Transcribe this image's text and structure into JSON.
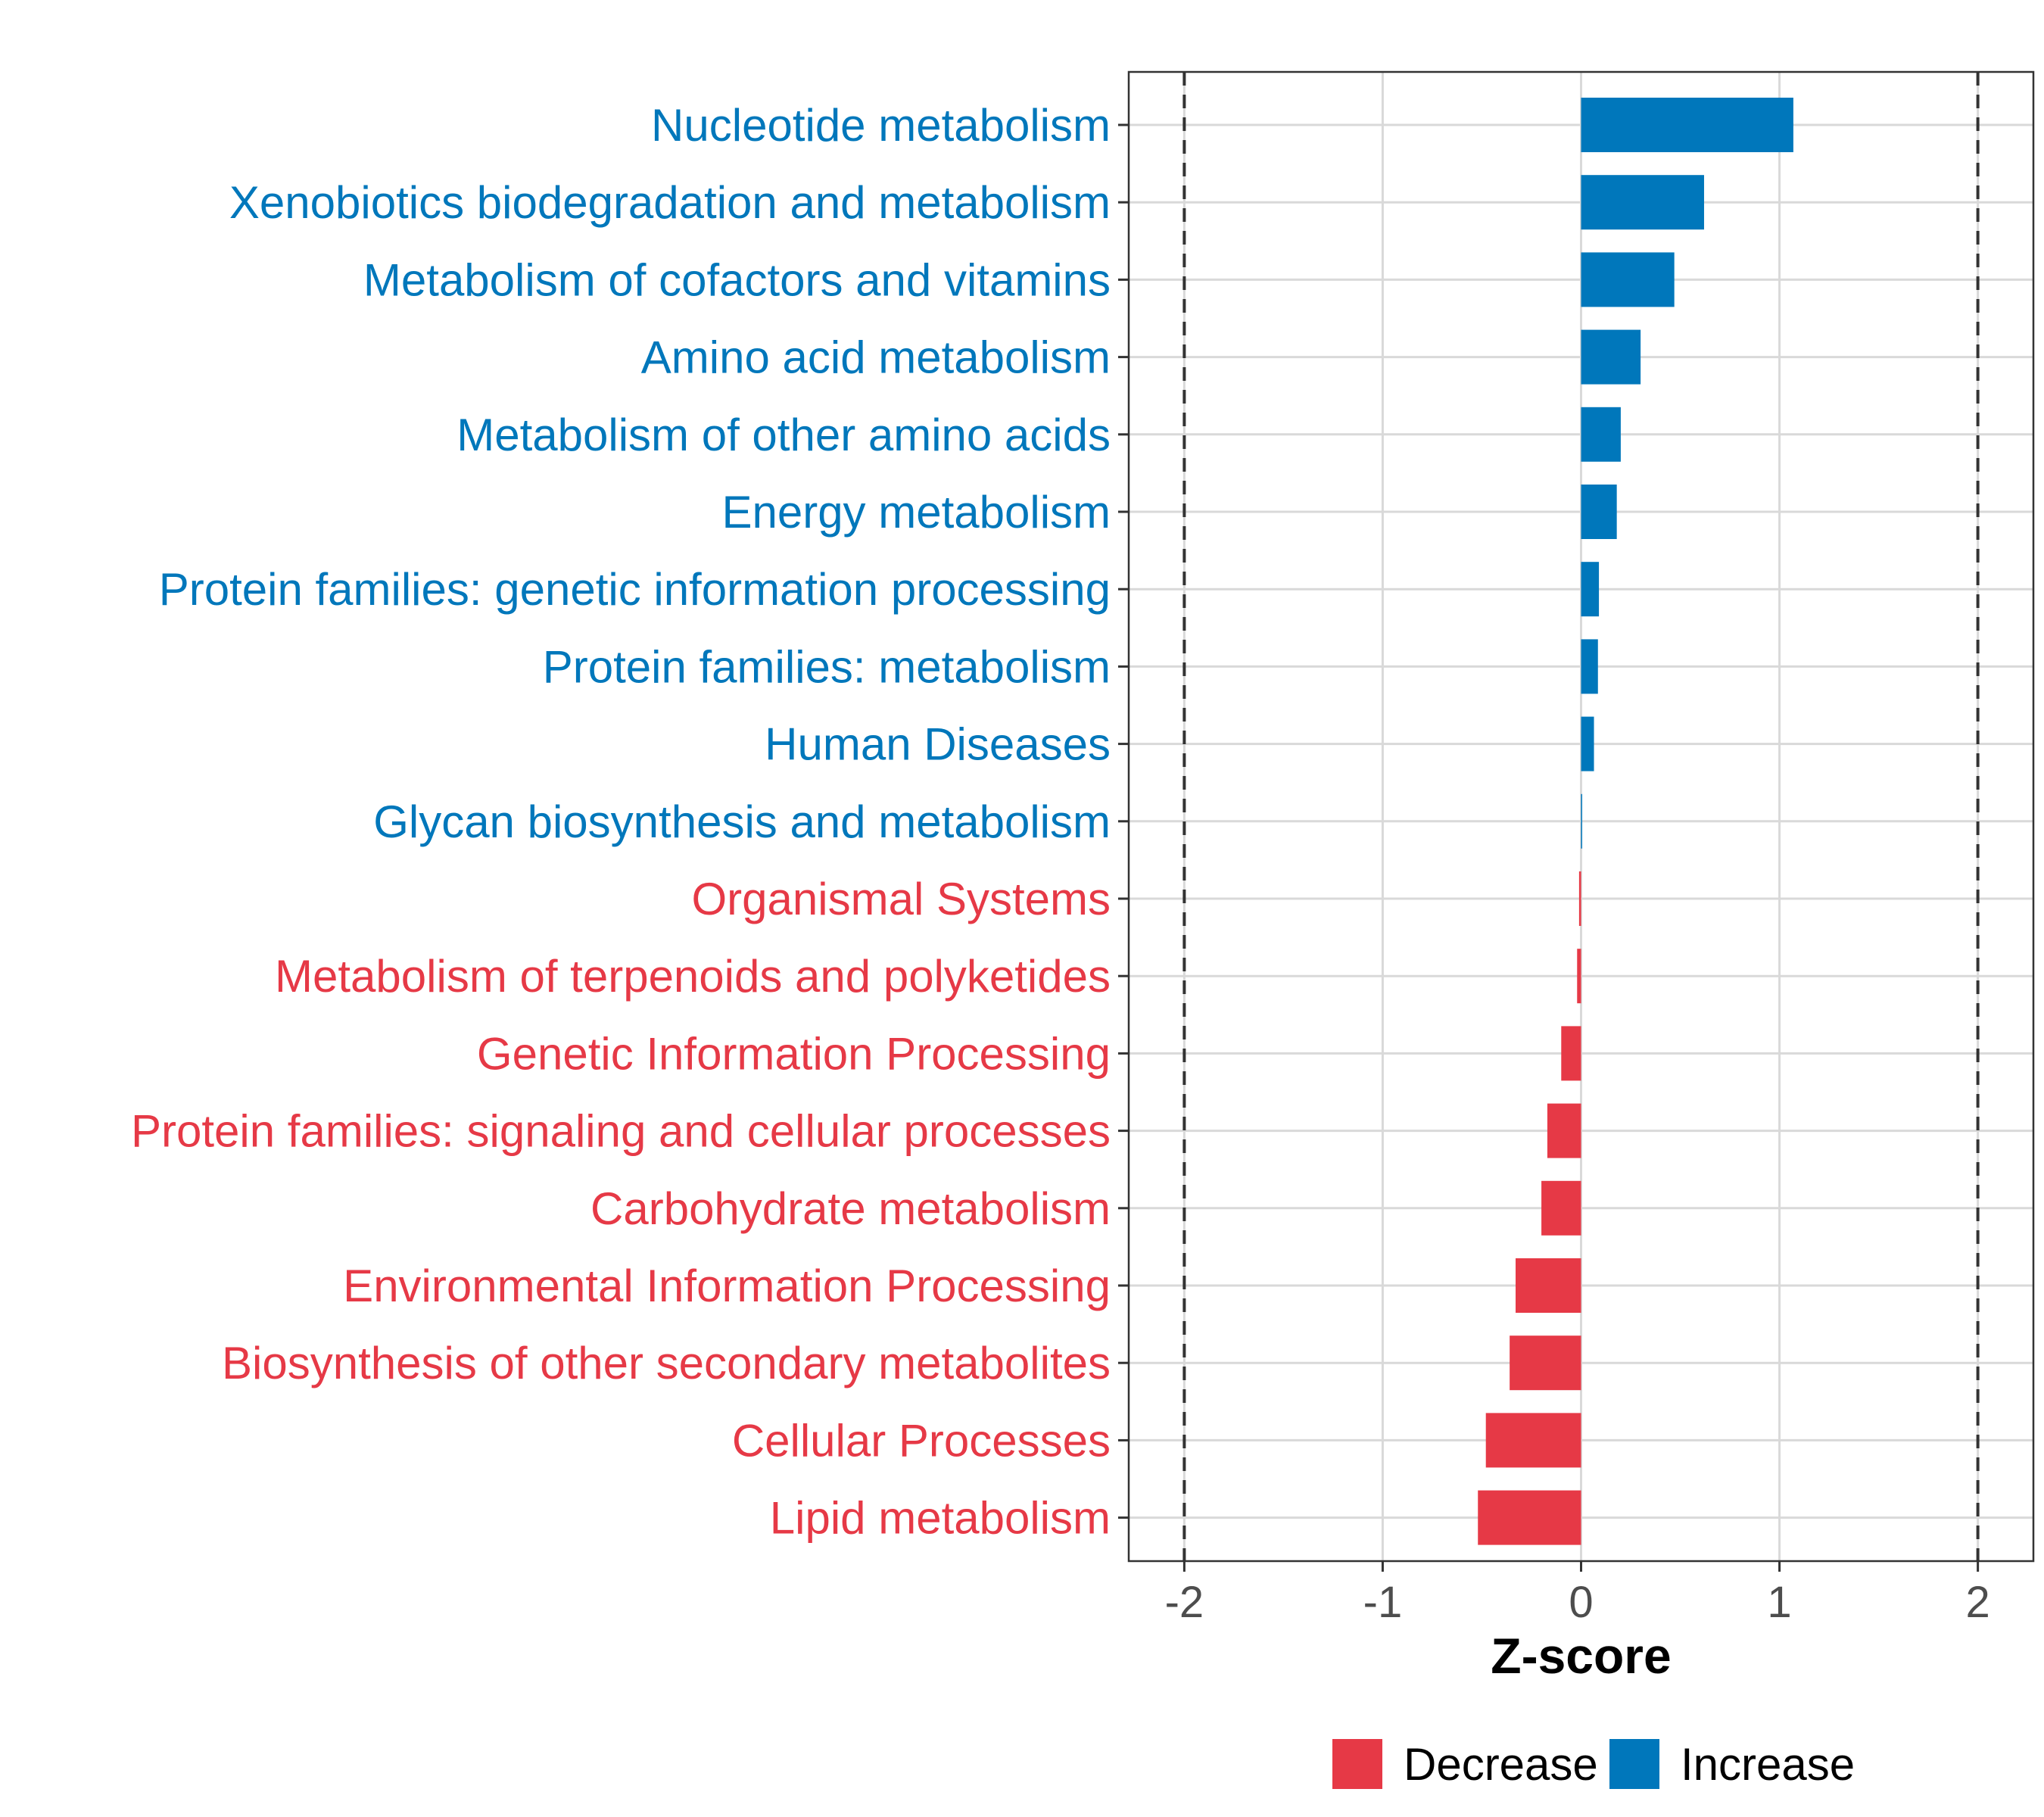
{
  "chart_data": {
    "type": "bar",
    "orientation": "horizontal",
    "xlabel": "Z-score",
    "xlim": [
      -2.28,
      2.28
    ],
    "xticks": [
      -2,
      -1,
      0,
      1,
      2
    ],
    "xtick_labels": [
      "-2",
      "-1",
      "0",
      "1",
      "2"
    ],
    "reference_lines": [
      -2,
      2
    ],
    "grid": true,
    "categories": [
      "Nucleotide metabolism",
      "Xenobiotics biodegradation and metabolism",
      "Metabolism of cofactors and vitamins",
      "Amino acid metabolism",
      "Metabolism of other amino acids",
      "Energy metabolism",
      "Protein families: genetic information processing",
      "Protein families: metabolism",
      "Human Diseases",
      "Glycan biosynthesis and metabolism",
      "Organismal Systems",
      "Metabolism of terpenoids and polyketides",
      "Genetic Information Processing",
      "Protein families: signaling and cellular processes",
      "Carbohydrate metabolism",
      "Environmental Information Processing",
      "Biosynthesis of other secondary metabolites",
      "Cellular Processes",
      "Lipid metabolism"
    ],
    "values": [
      1.07,
      0.62,
      0.47,
      0.3,
      0.2,
      0.18,
      0.09,
      0.085,
      0.065,
      0.005,
      -0.01,
      -0.02,
      -0.1,
      -0.17,
      -0.2,
      -0.33,
      -0.36,
      -0.48,
      -0.52
    ],
    "groups": [
      "Increase",
      "Increase",
      "Increase",
      "Increase",
      "Increase",
      "Increase",
      "Increase",
      "Increase",
      "Increase",
      "Increase",
      "Decrease",
      "Decrease",
      "Decrease",
      "Decrease",
      "Decrease",
      "Decrease",
      "Decrease",
      "Decrease",
      "Decrease"
    ],
    "legend": {
      "position": "bottom",
      "entries": [
        {
          "label": "Decrease",
          "color": "#E63946"
        },
        {
          "label": "Increase",
          "color": "#0077BB"
        }
      ]
    }
  }
}
